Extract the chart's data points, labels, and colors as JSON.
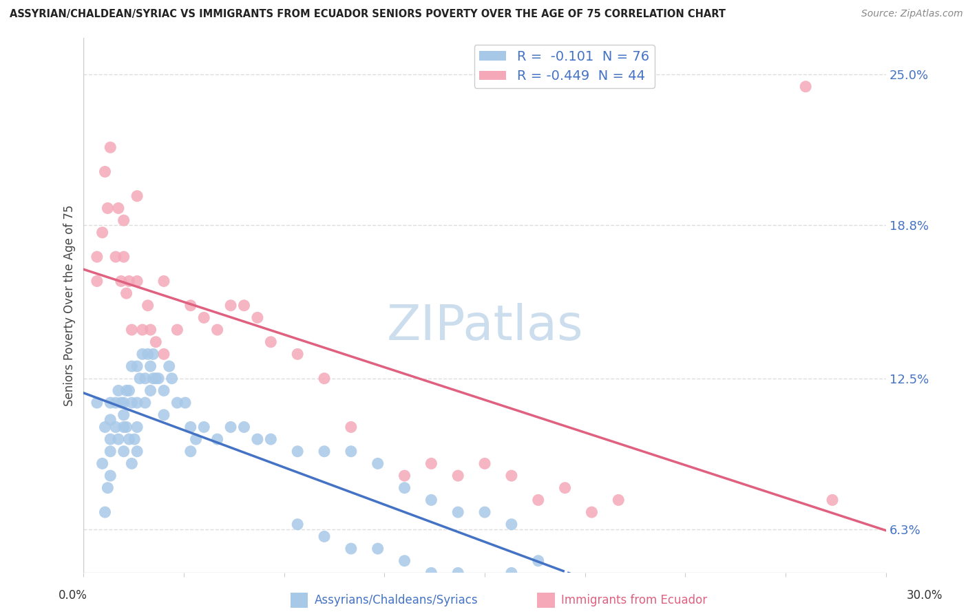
{
  "title": "ASSYRIAN/CHALDEAN/SYRIAC VS IMMIGRANTS FROM ECUADOR SENIORS POVERTY OVER THE AGE OF 75 CORRELATION CHART",
  "source": "Source: ZipAtlas.com",
  "ylabel": "Seniors Poverty Over the Age of 75",
  "xmin": 0.0,
  "xmax": 0.3,
  "ymin": 0.045,
  "ymax": 0.265,
  "yticks": [
    0.063,
    0.125,
    0.188,
    0.25
  ],
  "ytick_labels": [
    "6.3%",
    "12.5%",
    "18.8%",
    "25.0%"
  ],
  "xtick_labels": [
    "0.0%",
    "30.0%"
  ],
  "blue_R": -0.101,
  "blue_N": 76,
  "pink_R": -0.449,
  "pink_N": 44,
  "blue_color": "#A8C8E8",
  "pink_color": "#F4A8B8",
  "blue_line_color": "#4472C4",
  "pink_line_color": "#E06080",
  "legend_label_blue": "Assyrians/Chaldeans/Syriacs",
  "legend_label_pink": "Immigrants from Ecuador",
  "blue_scatter_x": [
    0.005,
    0.007,
    0.008,
    0.008,
    0.009,
    0.01,
    0.01,
    0.01,
    0.01,
    0.01,
    0.012,
    0.012,
    0.013,
    0.013,
    0.014,
    0.015,
    0.015,
    0.015,
    0.015,
    0.016,
    0.016,
    0.017,
    0.017,
    0.018,
    0.018,
    0.018,
    0.019,
    0.02,
    0.02,
    0.02,
    0.02,
    0.021,
    0.022,
    0.023,
    0.023,
    0.024,
    0.025,
    0.025,
    0.026,
    0.026,
    0.027,
    0.028,
    0.03,
    0.03,
    0.032,
    0.033,
    0.035,
    0.038,
    0.04,
    0.04,
    0.042,
    0.045,
    0.05,
    0.055,
    0.06,
    0.065,
    0.07,
    0.08,
    0.09,
    0.1,
    0.11,
    0.12,
    0.13,
    0.14,
    0.15,
    0.16,
    0.08,
    0.09,
    0.1,
    0.11,
    0.12,
    0.13,
    0.14,
    0.15,
    0.16,
    0.17
  ],
  "blue_scatter_y": [
    0.115,
    0.09,
    0.105,
    0.07,
    0.08,
    0.115,
    0.108,
    0.1,
    0.095,
    0.085,
    0.115,
    0.105,
    0.12,
    0.1,
    0.115,
    0.115,
    0.11,
    0.105,
    0.095,
    0.12,
    0.105,
    0.12,
    0.1,
    0.13,
    0.115,
    0.09,
    0.1,
    0.13,
    0.115,
    0.105,
    0.095,
    0.125,
    0.135,
    0.125,
    0.115,
    0.135,
    0.13,
    0.12,
    0.135,
    0.125,
    0.125,
    0.125,
    0.12,
    0.11,
    0.13,
    0.125,
    0.115,
    0.115,
    0.105,
    0.095,
    0.1,
    0.105,
    0.1,
    0.105,
    0.105,
    0.1,
    0.1,
    0.095,
    0.095,
    0.095,
    0.09,
    0.08,
    0.075,
    0.07,
    0.07,
    0.065,
    0.065,
    0.06,
    0.055,
    0.055,
    0.05,
    0.045,
    0.045,
    0.04,
    0.045,
    0.05
  ],
  "pink_scatter_x": [
    0.005,
    0.005,
    0.007,
    0.008,
    0.009,
    0.01,
    0.012,
    0.013,
    0.014,
    0.015,
    0.015,
    0.016,
    0.017,
    0.018,
    0.02,
    0.02,
    0.022,
    0.024,
    0.025,
    0.027,
    0.03,
    0.03,
    0.035,
    0.04,
    0.045,
    0.05,
    0.055,
    0.06,
    0.065,
    0.07,
    0.08,
    0.09,
    0.1,
    0.12,
    0.13,
    0.14,
    0.15,
    0.16,
    0.17,
    0.18,
    0.19,
    0.2,
    0.27,
    0.28
  ],
  "pink_scatter_y": [
    0.175,
    0.165,
    0.185,
    0.21,
    0.195,
    0.22,
    0.175,
    0.195,
    0.165,
    0.19,
    0.175,
    0.16,
    0.165,
    0.145,
    0.2,
    0.165,
    0.145,
    0.155,
    0.145,
    0.14,
    0.165,
    0.135,
    0.145,
    0.155,
    0.15,
    0.145,
    0.155,
    0.155,
    0.15,
    0.14,
    0.135,
    0.125,
    0.105,
    0.085,
    0.09,
    0.085,
    0.09,
    0.085,
    0.075,
    0.08,
    0.07,
    0.075,
    0.245,
    0.075
  ],
  "background_color": "#FFFFFF",
  "grid_color": "#DDDDDD",
  "watermark": "ZIPatlas",
  "watermark_color": "#CCDDEE"
}
